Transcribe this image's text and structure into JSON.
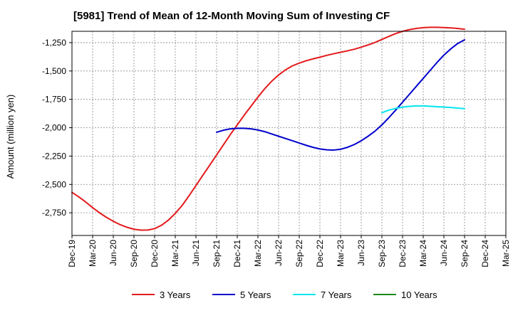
{
  "chart_data": {
    "type": "line",
    "title": "[5981]  Trend of Mean of 12-Month Moving Sum of Investing CF",
    "xlabel": "",
    "ylabel": "Amount (million yen)",
    "ylim": [
      -2950,
      -1150
    ],
    "yticks": [
      -1250,
      -1500,
      -1750,
      -2000,
      -2250,
      -2500,
      -2750
    ],
    "ytick_labels": [
      "-1,250",
      "-1,500",
      "-1,750",
      "-2,000",
      "-2,250",
      "-2,500",
      "-2,750"
    ],
    "xticks": [
      "Dec-19",
      "Mar-20",
      "Jun-20",
      "Sep-20",
      "Dec-20",
      "Mar-21",
      "Jun-21",
      "Sep-21",
      "Dec-21",
      "Mar-22",
      "Jun-22",
      "Sep-22",
      "Dec-22",
      "Mar-23",
      "Jun-23",
      "Sep-23",
      "Dec-23",
      "Mar-24",
      "Jun-24",
      "Sep-24",
      "Dec-24",
      "Mar-25"
    ],
    "grid": true,
    "legend_position": "bottom",
    "series": [
      {
        "name": "3 Years",
        "color": "#e31a1c",
        "start_index": 0,
        "values": [
          -2570,
          -2610,
          -2655,
          -2705,
          -2750,
          -2790,
          -2825,
          -2855,
          -2878,
          -2895,
          -2903,
          -2902,
          -2890,
          -2860,
          -2815,
          -2755,
          -2685,
          -2600,
          -2510,
          -2420,
          -2330,
          -2240,
          -2150,
          -2060,
          -1975,
          -1890,
          -1810,
          -1730,
          -1655,
          -1590,
          -1535,
          -1490,
          -1455,
          -1430,
          -1410,
          -1393,
          -1378,
          -1362,
          -1348,
          -1335,
          -1322,
          -1308,
          -1290,
          -1270,
          -1248,
          -1222,
          -1195,
          -1170,
          -1150,
          -1135,
          -1125,
          -1118,
          -1115,
          -1115,
          -1117,
          -1120,
          -1125,
          -1132
        ]
      },
      {
        "name": "5 Years",
        "color": "#0000cc",
        "start_index": 21,
        "values": [
          -2040,
          -2022,
          -2010,
          -2005,
          -2005,
          -2010,
          -2020,
          -2035,
          -2055,
          -2075,
          -2095,
          -2115,
          -2135,
          -2155,
          -2173,
          -2187,
          -2195,
          -2197,
          -2190,
          -2173,
          -2148,
          -2115,
          -2075,
          -2030,
          -1975,
          -1912,
          -1845,
          -1775,
          -1705,
          -1635,
          -1565,
          -1495,
          -1425,
          -1360,
          -1305,
          -1258,
          -1225
        ]
      },
      {
        "name": "7 Years",
        "color": "#00e5ee",
        "start_index": 45,
        "values": [
          -1868,
          -1845,
          -1830,
          -1819,
          -1812,
          -1808,
          -1808,
          -1811,
          -1815,
          -1818,
          -1822,
          -1827,
          -1832
        ]
      },
      {
        "name": "10 Years",
        "color": "#1a8a1a",
        "start_index": 0,
        "values": []
      }
    ]
  }
}
